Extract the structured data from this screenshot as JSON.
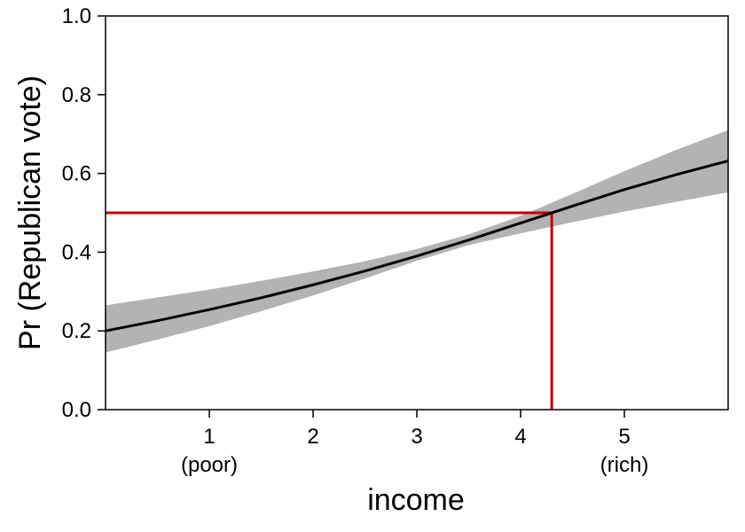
{
  "chart_data": {
    "type": "line",
    "xlabel": "income",
    "ylabel": "Pr (Republican vote)",
    "xlim": [
      0,
      6
    ],
    "ylim": [
      0,
      1
    ],
    "x_ticks": [
      {
        "value": 1,
        "label": "1",
        "sublabel": "(poor)"
      },
      {
        "value": 2,
        "label": "2",
        "sublabel": ""
      },
      {
        "value": 3,
        "label": "3",
        "sublabel": ""
      },
      {
        "value": 4,
        "label": "4",
        "sublabel": ""
      },
      {
        "value": 5,
        "label": "5",
        "sublabel": "(rich)"
      }
    ],
    "y_ticks": [
      {
        "value": 0.0,
        "label": "0.0"
      },
      {
        "value": 0.2,
        "label": "0.2"
      },
      {
        "value": 0.4,
        "label": "0.4"
      },
      {
        "value": 0.6,
        "label": "0.6"
      },
      {
        "value": 0.8,
        "label": "0.8"
      },
      {
        "value": 1.0,
        "label": "1.0"
      }
    ],
    "series": [
      {
        "kind": "line",
        "color": "#000000",
        "x": [
          0,
          0.5,
          1,
          1.5,
          2,
          2.5,
          3,
          3.5,
          4,
          4.5,
          5,
          5.5,
          6
        ],
        "y": [
          0.2,
          0.226,
          0.254,
          0.284,
          0.317,
          0.352,
          0.39,
          0.431,
          0.474,
          0.517,
          0.559,
          0.597,
          0.632
        ]
      },
      {
        "kind": "band",
        "color": "#b3b3b3",
        "x": [
          0,
          0.5,
          1,
          1.5,
          2,
          2.5,
          3,
          3.5,
          4,
          4.5,
          5,
          5.5,
          6
        ],
        "lower": [
          0.145,
          0.178,
          0.212,
          0.25,
          0.29,
          0.333,
          0.378,
          0.418,
          0.448,
          0.476,
          0.503,
          0.528,
          0.552
        ],
        "upper": [
          0.265,
          0.285,
          0.305,
          0.327,
          0.351,
          0.377,
          0.408,
          0.445,
          0.492,
          0.548,
          0.606,
          0.66,
          0.71
        ]
      }
    ],
    "annotations": [
      {
        "kind": "reference_lines",
        "color": "#c00000",
        "x": 4.3,
        "y": 0.5
      }
    ],
    "grid": false,
    "legend": "none"
  }
}
